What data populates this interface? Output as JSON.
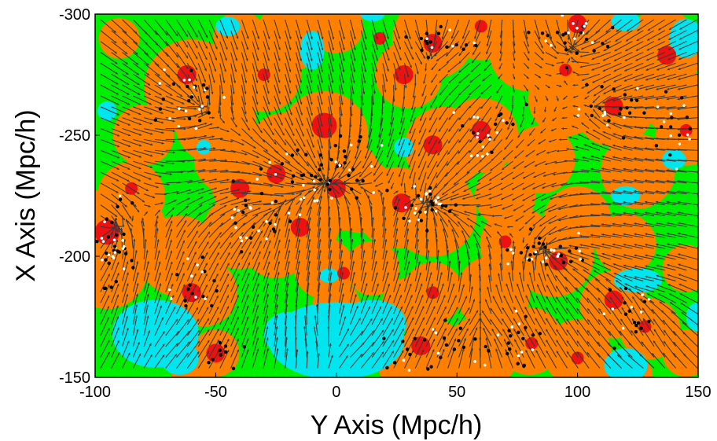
{
  "chart_data": {
    "type": "heatmap",
    "title": "",
    "xlabel": "Y Axis (Mpc/h)",
    "ylabel": "X Axis (Mpc/h)",
    "xlim": [
      -100,
      150
    ],
    "ylim": [
      -150,
      -300
    ],
    "y_axis_inverted": true,
    "x_ticks": [
      -100,
      -50,
      0,
      50,
      100,
      150
    ],
    "y_ticks": [
      -300,
      -250,
      -200,
      -150
    ],
    "x_tick_labels": [
      "-100",
      "-50",
      "0",
      "50",
      "100",
      "150"
    ],
    "y_tick_labels": [
      "-300",
      "-250",
      "-200",
      "-150"
    ],
    "grid": false,
    "legend": "none",
    "colors": {
      "background_field": "#00ee00",
      "overdense": "#ff7f00",
      "peak": "#ee1111",
      "void": "#00e5ee",
      "vector": "#3a3a3a",
      "galaxy_dark": "#000000",
      "galaxy_light": "#ffffff",
      "frame": "#000000"
    },
    "overdense_regions": [
      {
        "x": -90,
        "y": -210,
        "r": 14
      },
      {
        "x": -95,
        "y": -195,
        "r": 12
      },
      {
        "x": -85,
        "y": -225,
        "r": 10
      },
      {
        "x": -60,
        "y": -270,
        "r": 14
      },
      {
        "x": -50,
        "y": -255,
        "r": 12
      },
      {
        "x": -45,
        "y": -240,
        "r": 10
      },
      {
        "x": -65,
        "y": -200,
        "r": 12
      },
      {
        "x": -55,
        "y": -185,
        "r": 10
      },
      {
        "x": -40,
        "y": -210,
        "r": 11
      },
      {
        "x": -35,
        "y": -230,
        "r": 12
      },
      {
        "x": -20,
        "y": -240,
        "r": 14
      },
      {
        "x": -15,
        "y": -215,
        "r": 12
      },
      {
        "x": -25,
        "y": -205,
        "r": 10
      },
      {
        "x": -5,
        "y": -250,
        "r": 13
      },
      {
        "x": 0,
        "y": -230,
        "r": 14
      },
      {
        "x": 10,
        "y": -225,
        "r": 11
      },
      {
        "x": 25,
        "y": -220,
        "r": 12
      },
      {
        "x": 40,
        "y": -218,
        "r": 13
      },
      {
        "x": 45,
        "y": -245,
        "r": 12
      },
      {
        "x": 60,
        "y": -250,
        "r": 11
      },
      {
        "x": 30,
        "y": -275,
        "r": 10
      },
      {
        "x": -30,
        "y": -275,
        "r": 11
      },
      {
        "x": -20,
        "y": -290,
        "r": 10
      },
      {
        "x": -40,
        "y": -290,
        "r": 8
      },
      {
        "x": 40,
        "y": -290,
        "r": 12
      },
      {
        "x": 60,
        "y": -295,
        "r": 10
      },
      {
        "x": 80,
        "y": -285,
        "r": 12
      },
      {
        "x": 100,
        "y": -295,
        "r": 14
      },
      {
        "x": 115,
        "y": -280,
        "r": 11
      },
      {
        "x": 135,
        "y": -285,
        "r": 12
      },
      {
        "x": 95,
        "y": -265,
        "r": 11
      },
      {
        "x": 115,
        "y": -262,
        "r": 12
      },
      {
        "x": 140,
        "y": -265,
        "r": 10
      },
      {
        "x": 145,
        "y": -250,
        "r": 9
      },
      {
        "x": 125,
        "y": -235,
        "r": 11
      },
      {
        "x": 85,
        "y": -240,
        "r": 10
      },
      {
        "x": 70,
        "y": -225,
        "r": 9
      },
      {
        "x": 100,
        "y": -215,
        "r": 10
      },
      {
        "x": 75,
        "y": -205,
        "r": 11
      },
      {
        "x": 90,
        "y": -200,
        "r": 12
      },
      {
        "x": 120,
        "y": -205,
        "r": 9
      },
      {
        "x": 145,
        "y": -195,
        "r": 7
      },
      {
        "x": 65,
        "y": -185,
        "r": 11
      },
      {
        "x": 40,
        "y": -185,
        "r": 9
      },
      {
        "x": 30,
        "y": -180,
        "r": 8
      },
      {
        "x": -5,
        "y": -195,
        "r": 9
      },
      {
        "x": 15,
        "y": -195,
        "r": 8
      },
      {
        "x": 0,
        "y": -180,
        "r": 7
      },
      {
        "x": 115,
        "y": -180,
        "r": 10
      },
      {
        "x": 130,
        "y": -170,
        "r": 9
      },
      {
        "x": 100,
        "y": -160,
        "r": 10
      },
      {
        "x": 80,
        "y": -165,
        "r": 10
      },
      {
        "x": 60,
        "y": -160,
        "r": 11
      },
      {
        "x": 40,
        "y": -160,
        "r": 10
      },
      {
        "x": 30,
        "y": -155,
        "r": 9
      },
      {
        "x": -50,
        "y": -160,
        "r": 7
      },
      {
        "x": -60,
        "y": -152,
        "r": 6
      },
      {
        "x": 120,
        "y": -150,
        "r": 8
      },
      {
        "x": 145,
        "y": -160,
        "r": 7
      },
      {
        "x": -90,
        "y": -290,
        "r": 6
      },
      {
        "x": 0,
        "y": -295,
        "r": 8
      },
      {
        "x": -80,
        "y": -250,
        "r": 9
      }
    ],
    "peaks": [
      {
        "x": -95,
        "y": -210,
        "r": 4
      },
      {
        "x": -62,
        "y": -275,
        "r": 3
      },
      {
        "x": -60,
        "y": -185,
        "r": 3
      },
      {
        "x": -40,
        "y": -228,
        "r": 3
      },
      {
        "x": -15,
        "y": -212,
        "r": 3
      },
      {
        "x": -5,
        "y": -254,
        "r": 4
      },
      {
        "x": -25,
        "y": -234,
        "r": 3
      },
      {
        "x": 0,
        "y": -228,
        "r": 3
      },
      {
        "x": 27,
        "y": -222,
        "r": 3
      },
      {
        "x": 40,
        "y": -246,
        "r": 3
      },
      {
        "x": 60,
        "y": -252,
        "r": 3
      },
      {
        "x": 28,
        "y": -275,
        "r": 3
      },
      {
        "x": 40,
        "y": -288,
        "r": 3
      },
      {
        "x": 100,
        "y": -296,
        "r": 3
      },
      {
        "x": 137,
        "y": -283,
        "r": 3
      },
      {
        "x": 115,
        "y": -262,
        "r": 3
      },
      {
        "x": 95,
        "y": -277,
        "r": 2
      },
      {
        "x": 92,
        "y": -198,
        "r": 3
      },
      {
        "x": 115,
        "y": -182,
        "r": 3
      },
      {
        "x": 128,
        "y": -171,
        "r": 2
      },
      {
        "x": 35,
        "y": -163,
        "r": 3
      },
      {
        "x": 40,
        "y": -185,
        "r": 2
      },
      {
        "x": -50,
        "y": -160,
        "r": 3
      },
      {
        "x": 3,
        "y": -193,
        "r": 2
      },
      {
        "x": 81,
        "y": -164,
        "r": 2
      },
      {
        "x": 100,
        "y": -158,
        "r": 2
      },
      {
        "x": -30,
        "y": -275,
        "r": 2
      },
      {
        "x": 60,
        "y": -295,
        "r": 2
      },
      {
        "x": 145,
        "y": -252,
        "r": 2
      },
      {
        "x": -85,
        "y": -228,
        "r": 2
      },
      {
        "x": 70,
        "y": -206,
        "r": 2
      },
      {
        "x": 18,
        "y": -290,
        "r": 2
      }
    ],
    "voids": [
      {
        "x": -75,
        "y": -168,
        "rx": 18,
        "ry": 14
      },
      {
        "x": -65,
        "y": -158,
        "rx": 8,
        "ry": 7
      },
      {
        "x": 0,
        "y": -165,
        "rx": 28,
        "ry": 16
      },
      {
        "x": 15,
        "y": -172,
        "rx": 14,
        "ry": 10
      },
      {
        "x": -20,
        "y": -168,
        "rx": 10,
        "ry": 9
      },
      {
        "x": 120,
        "y": -155,
        "rx": 9,
        "ry": 7
      },
      {
        "x": 150,
        "y": -175,
        "rx": 5,
        "ry": 6
      },
      {
        "x": 125,
        "y": -190,
        "rx": 10,
        "ry": 5
      },
      {
        "x": 120,
        "y": -225,
        "rx": 6,
        "ry": 4
      },
      {
        "x": 140,
        "y": -240,
        "rx": 5,
        "ry": 4
      },
      {
        "x": 145,
        "y": -290,
        "rx": 7,
        "ry": 8
      },
      {
        "x": 120,
        "y": -297,
        "rx": 6,
        "ry": 4
      },
      {
        "x": -10,
        "y": -285,
        "rx": 5,
        "ry": 8
      },
      {
        "x": -45,
        "y": -295,
        "rx": 5,
        "ry": 4
      },
      {
        "x": 15,
        "y": -300,
        "rx": 5,
        "ry": 3
      },
      {
        "x": 28,
        "y": -245,
        "rx": 4,
        "ry": 4
      },
      {
        "x": -3,
        "y": -192,
        "rx": 4,
        "ry": 3
      },
      {
        "x": -95,
        "y": -260,
        "rx": 4,
        "ry": 4
      },
      {
        "x": -55,
        "y": -245,
        "rx": 3,
        "ry": 3
      }
    ],
    "flow_attractors": [
      {
        "x": -95,
        "y": -210,
        "w": 3.0
      },
      {
        "x": -5,
        "y": -230,
        "w": 4.0
      },
      {
        "x": 40,
        "y": -220,
        "w": 2.5
      },
      {
        "x": -60,
        "y": -265,
        "w": 2.0
      },
      {
        "x": 100,
        "y": -290,
        "w": 2.5
      },
      {
        "x": 90,
        "y": -200,
        "w": 2.5
      },
      {
        "x": 115,
        "y": -262,
        "w": 1.5
      },
      {
        "x": 60,
        "y": -165,
        "w": 1.5
      },
      {
        "x": -30,
        "y": -215,
        "w": 1.5
      },
      {
        "x": 40,
        "y": -290,
        "w": 1.2
      },
      {
        "x": 130,
        "y": -180,
        "w": 1.0
      }
    ],
    "flow_repellers": [
      {
        "x": 0,
        "y": -165,
        "w": 2.0
      },
      {
        "x": -75,
        "y": -168,
        "w": 1.2
      },
      {
        "x": 130,
        "y": -160,
        "w": 1.0
      },
      {
        "x": 70,
        "y": -270,
        "w": 1.0
      }
    ],
    "galaxy_groups": [
      {
        "x": -92,
        "y": -205,
        "sx": 6,
        "sy": 14,
        "n": 40
      },
      {
        "x": -60,
        "y": -265,
        "sx": 10,
        "sy": 10,
        "n": 30
      },
      {
        "x": -5,
        "y": -235,
        "sx": 16,
        "sy": 10,
        "n": 55
      },
      {
        "x": 35,
        "y": -220,
        "sx": 12,
        "sy": 6,
        "n": 35
      },
      {
        "x": -30,
        "y": -215,
        "sx": 12,
        "sy": 10,
        "n": 30
      },
      {
        "x": -60,
        "y": -190,
        "sx": 10,
        "sy": 10,
        "n": 20
      },
      {
        "x": 100,
        "y": -290,
        "sx": 12,
        "sy": 8,
        "n": 30
      },
      {
        "x": 115,
        "y": -262,
        "sx": 12,
        "sy": 8,
        "n": 25
      },
      {
        "x": 85,
        "y": -200,
        "sx": 14,
        "sy": 8,
        "n": 35
      },
      {
        "x": 60,
        "y": -250,
        "sx": 14,
        "sy": 8,
        "n": 25
      },
      {
        "x": 60,
        "y": -165,
        "sx": 18,
        "sy": 10,
        "n": 35
      },
      {
        "x": 120,
        "y": -180,
        "sx": 12,
        "sy": 12,
        "n": 20
      },
      {
        "x": 40,
        "y": -290,
        "sx": 12,
        "sy": 6,
        "n": 20
      },
      {
        "x": 140,
        "y": -250,
        "sx": 8,
        "sy": 14,
        "n": 18
      },
      {
        "x": 30,
        "y": -160,
        "sx": 10,
        "sy": 8,
        "n": 15
      },
      {
        "x": -45,
        "y": -160,
        "sx": 10,
        "sy": 6,
        "n": 10
      }
    ],
    "vector_grid_spacing": 4.5
  }
}
